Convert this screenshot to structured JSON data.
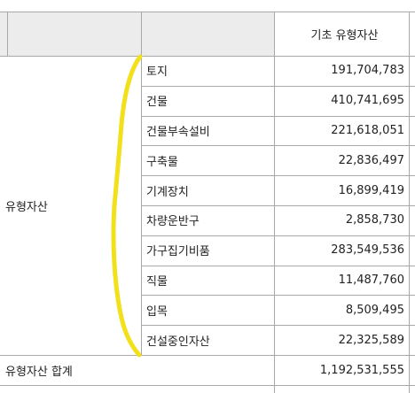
{
  "header": {
    "column_title": "기초 유형자산"
  },
  "group": {
    "label": "유형자산"
  },
  "rows": [
    {
      "item": "토지",
      "value": "191,704,783"
    },
    {
      "item": "건물",
      "value": "410,741,695"
    },
    {
      "item": "건물부속설비",
      "value": "221,618,051"
    },
    {
      "item": "구축물",
      "value": "22,836,497"
    },
    {
      "item": "기계장치",
      "value": "16,899,419"
    },
    {
      "item": "차량운반구",
      "value": "2,858,730"
    },
    {
      "item": "가구집기비품",
      "value": "283,549,536"
    },
    {
      "item": "직물",
      "value": "11,487,760"
    },
    {
      "item": "입목",
      "value": "8,509,495"
    },
    {
      "item": "건설중인자산",
      "value": "22,325,589"
    }
  ],
  "total": {
    "label": "유형자산  합계",
    "value": "1,192,531,555"
  },
  "annotation": {
    "brace_color": "#f2e01a"
  }
}
